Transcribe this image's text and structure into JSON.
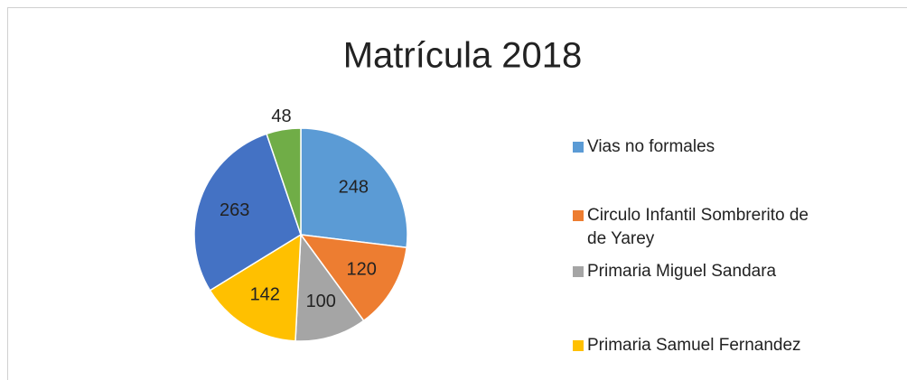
{
  "chart_data": {
    "type": "pie",
    "title": "Matrícula 2018",
    "categories": [
      "Vias no formales",
      "Circulo Infantil Sombrerito de de Yarey",
      "Primaria Miguel Sandara",
      "Primaria Samuel Fernandez",
      null,
      null
    ],
    "values": [
      248,
      120,
      100,
      142,
      263,
      48
    ],
    "colors": [
      "#5b9bd5",
      "#ed7d31",
      "#a5a5a5",
      "#ffc000",
      "#4472c4",
      "#70ad47"
    ],
    "legend": "right"
  }
}
